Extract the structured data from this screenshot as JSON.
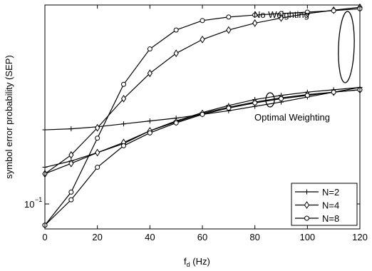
{
  "chart_data": {
    "type": "line",
    "xlabel": "f",
    "xlabel_sub": "d",
    "xlabel_unit": " (Hz)",
    "ylabel": "symbol error probability (SEP)",
    "x_ticks": [
      "0",
      "20",
      "40",
      "60",
      "80",
      "100",
      "120"
    ],
    "y_tick_label": "10",
    "y_tick_exp": "−1",
    "xlim": [
      0,
      120
    ],
    "ylim": [
      0.085,
      0.345
    ],
    "y_scale": "log",
    "grid": false,
    "legend_position": "lower-right",
    "annotations": {
      "no_weighting": "No Weighting",
      "optimal_weighting": "Optimal Weighting"
    },
    "x": [
      0,
      10,
      20,
      30,
      40,
      50,
      60,
      70,
      80,
      90,
      100,
      110,
      120
    ],
    "series": [
      {
        "name": "N=2",
        "marker": "plus",
        "values": [
          0.158,
          0.159,
          0.161,
          0.164,
          0.167,
          0.17,
          0.174,
          0.178,
          0.183,
          0.188,
          0.194,
          0.2,
          0.206
        ]
      },
      {
        "name": "N=4",
        "marker": "diamond",
        "values": [
          0.12,
          0.135,
          0.16,
          0.192,
          0.225,
          0.255,
          0.278,
          0.295,
          0.308,
          0.318,
          0.327,
          0.334,
          0.34
        ]
      },
      {
        "name": "N=8",
        "marker": "circle",
        "values": [
          0.087,
          0.107,
          0.15,
          0.21,
          0.262,
          0.295,
          0.313,
          0.32,
          0.324,
          0.327,
          0.33,
          0.333,
          0.337
        ]
      },
      {
        "name": "N=2",
        "marker": "plus",
        "values": [
          0.125,
          0.13,
          0.137,
          0.145,
          0.157,
          0.167,
          0.176,
          0.184,
          0.191,
          0.196,
          0.2,
          0.203,
          0.206
        ]
      },
      {
        "name": "N=4",
        "marker": "diamond",
        "values": [
          0.12,
          0.128,
          0.137,
          0.146,
          0.157,
          0.166,
          0.175,
          0.182,
          0.188,
          0.193,
          0.197,
          0.2,
          0.203
        ]
      },
      {
        "name": "N=8",
        "marker": "circle",
        "values": [
          0.087,
          0.102,
          0.125,
          0.143,
          0.155,
          0.165,
          0.174,
          0.181,
          0.187,
          0.192,
          0.196,
          0.2,
          0.203
        ]
      }
    ],
    "legend": [
      "N=2",
      "N=4",
      "N=8"
    ]
  }
}
